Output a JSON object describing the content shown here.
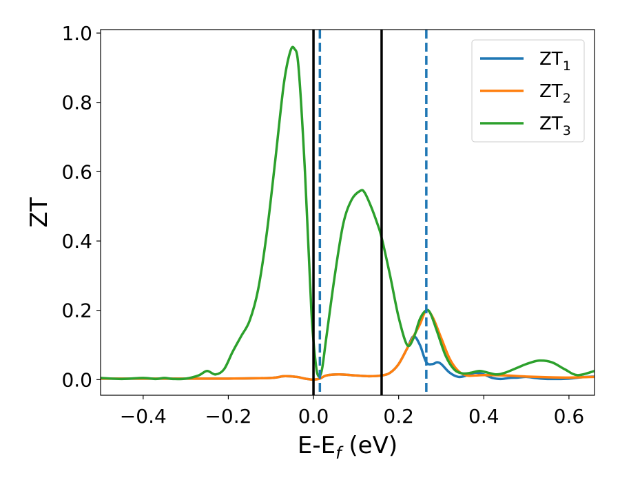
{
  "chart_data": {
    "type": "line",
    "xlabel": {
      "main": "E-E",
      "sub": "f",
      "suffix": " (eV)"
    },
    "ylabel": "ZT",
    "xlim": [
      -0.5,
      0.66
    ],
    "ylim": [
      -0.045,
      1.01
    ],
    "xticks": [
      -0.4,
      -0.2,
      0.0,
      0.2,
      0.4,
      0.6
    ],
    "xtick_labels": [
      "−0.4",
      "−0.2",
      "0.0",
      "0.2",
      "0.4",
      "0.6"
    ],
    "yticks": [
      0.0,
      0.2,
      0.4,
      0.6,
      0.8,
      1.0
    ],
    "ytick_labels": [
      "0.0",
      "0.2",
      "0.4",
      "0.6",
      "0.8",
      "1.0"
    ],
    "grid": false,
    "legend_position": "top-right",
    "vlines": [
      {
        "x": 0.0,
        "style": "solid",
        "color": "#000000"
      },
      {
        "x": 0.16,
        "style": "solid",
        "color": "#000000"
      },
      {
        "x": 0.015,
        "style": "dashed",
        "color": "#1f77b4"
      },
      {
        "x": 0.265,
        "style": "dashed",
        "color": "#1f77b4"
      }
    ],
    "series": [
      {
        "name": "ZT",
        "sub": "1",
        "color": "#1f77b4",
        "x": [
          -0.5,
          -0.3,
          -0.2,
          -0.1,
          -0.07,
          -0.04,
          -0.02,
          0.0,
          0.015,
          0.03,
          0.06,
          0.1,
          0.13,
          0.16,
          0.18,
          0.2,
          0.22,
          0.235,
          0.25,
          0.265,
          0.28,
          0.29,
          0.3,
          0.32,
          0.34,
          0.36,
          0.38,
          0.4,
          0.42,
          0.44,
          0.46,
          0.48,
          0.5,
          0.52,
          0.55,
          0.6,
          0.63,
          0.66
        ],
        "y": [
          0.003,
          0.003,
          0.003,
          0.005,
          0.01,
          0.008,
          0.003,
          0.0,
          0.003,
          0.012,
          0.015,
          0.012,
          0.01,
          0.012,
          0.02,
          0.045,
          0.09,
          0.125,
          0.1,
          0.05,
          0.045,
          0.05,
          0.045,
          0.02,
          0.008,
          0.012,
          0.02,
          0.015,
          0.005,
          0.002,
          0.005,
          0.006,
          0.008,
          0.005,
          0.002,
          0.003,
          0.007,
          0.009
        ]
      },
      {
        "name": "ZT",
        "sub": "2",
        "color": "#ff7f0e",
        "x": [
          -0.5,
          -0.3,
          -0.2,
          -0.1,
          -0.07,
          -0.04,
          -0.02,
          0.0,
          0.015,
          0.03,
          0.06,
          0.1,
          0.13,
          0.16,
          0.18,
          0.2,
          0.22,
          0.235,
          0.25,
          0.265,
          0.28,
          0.3,
          0.32,
          0.34,
          0.36,
          0.38,
          0.4,
          0.45,
          0.5,
          0.55,
          0.6,
          0.63,
          0.66
        ],
        "y": [
          0.003,
          0.003,
          0.003,
          0.005,
          0.01,
          0.008,
          0.003,
          0.0,
          0.003,
          0.012,
          0.015,
          0.012,
          0.01,
          0.012,
          0.02,
          0.045,
          0.09,
          0.125,
          0.16,
          0.2,
          0.18,
          0.12,
          0.06,
          0.025,
          0.012,
          0.012,
          0.013,
          0.012,
          0.009,
          0.007,
          0.006,
          0.007,
          0.008
        ]
      },
      {
        "name": "ZT",
        "sub": "3",
        "color": "#2ca02c",
        "x": [
          -0.5,
          -0.45,
          -0.4,
          -0.37,
          -0.35,
          -0.33,
          -0.3,
          -0.27,
          -0.25,
          -0.23,
          -0.21,
          -0.19,
          -0.17,
          -0.15,
          -0.13,
          -0.11,
          -0.09,
          -0.07,
          -0.055,
          -0.045,
          -0.035,
          -0.02,
          -0.005,
          0.005,
          0.012,
          0.02,
          0.03,
          0.05,
          0.07,
          0.09,
          0.11,
          0.12,
          0.135,
          0.15,
          0.16,
          0.18,
          0.2,
          0.22,
          0.235,
          0.25,
          0.265,
          0.275,
          0.29,
          0.31,
          0.33,
          0.35,
          0.37,
          0.39,
          0.41,
          0.43,
          0.45,
          0.48,
          0.5,
          0.53,
          0.56,
          0.59,
          0.62,
          0.66
        ],
        "y": [
          0.005,
          0.002,
          0.005,
          0.002,
          0.005,
          0.002,
          0.003,
          0.012,
          0.025,
          0.015,
          0.03,
          0.08,
          0.125,
          0.17,
          0.26,
          0.42,
          0.63,
          0.85,
          0.945,
          0.955,
          0.9,
          0.6,
          0.2,
          0.05,
          0.01,
          0.03,
          0.12,
          0.3,
          0.45,
          0.52,
          0.545,
          0.54,
          0.5,
          0.45,
          0.41,
          0.3,
          0.18,
          0.1,
          0.12,
          0.175,
          0.2,
          0.19,
          0.14,
          0.07,
          0.03,
          0.018,
          0.02,
          0.025,
          0.02,
          0.015,
          0.02,
          0.035,
          0.045,
          0.055,
          0.05,
          0.03,
          0.013,
          0.025
        ]
      }
    ]
  }
}
